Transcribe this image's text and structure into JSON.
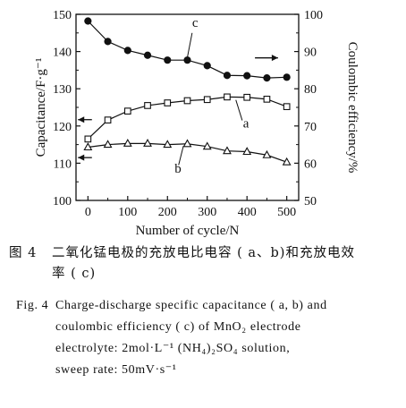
{
  "chart_data": {
    "type": "scatter",
    "xlabel": "Number of cycle/N",
    "ylabel_left": "Capacitance/F·g⁻¹",
    "ylabel_right": "Coulombic efficiency/%",
    "xlim": [
      -30,
      530
    ],
    "ylim_left": [
      100,
      150
    ],
    "ylim_right": [
      50,
      100
    ],
    "x_ticks": [
      0,
      100,
      200,
      300,
      400,
      500
    ],
    "y_ticks_left": [
      100,
      110,
      120,
      130,
      140,
      150
    ],
    "y_ticks_right": [
      50,
      60,
      70,
      80,
      90,
      100
    ],
    "grid": false,
    "series": [
      {
        "name": "c",
        "axis": "right",
        "marker": "filled-circle",
        "x": [
          0,
          50,
          100,
          150,
          200,
          250,
          300,
          350,
          400,
          450,
          500
        ],
        "values": [
          98.2,
          92.7,
          90.3,
          89.0,
          87.7,
          87.7,
          86.2,
          83.6,
          83.5,
          82.9,
          83.1
        ]
      },
      {
        "name": "a",
        "axis": "left",
        "marker": "open-square",
        "x": [
          0,
          50,
          100,
          150,
          200,
          250,
          300,
          350,
          400,
          450,
          500
        ],
        "values": [
          116.5,
          121.6,
          124.0,
          125.5,
          126.2,
          126.8,
          127.1,
          127.8,
          127.7,
          127.2,
          125.2
        ]
      },
      {
        "name": "b",
        "axis": "left",
        "marker": "open-triangle",
        "x": [
          0,
          50,
          100,
          150,
          200,
          250,
          300,
          350,
          400,
          450,
          500
        ],
        "values": [
          114.3,
          115.0,
          115.3,
          115.3,
          115.0,
          115.2,
          114.5,
          113.3,
          113.1,
          112.2,
          110.3
        ]
      }
    ],
    "annotations": [
      "c",
      "a",
      "b"
    ]
  },
  "caption_cn": {
    "label": "图 4",
    "line1": "二氧化锰电极的充放电比电容 ( a、b)和充放电效",
    "line2": "率 ( c)"
  },
  "caption_en": {
    "label": "Fig. 4",
    "line1": "Charge-discharge specific capacitance ( a, b)  and",
    "line2": "coulombic efficiency ( c)  of MnO₂  electrode",
    "line3": "electrolyte: 2mol·L⁻¹ (NH₄)₂SO₄  solution,",
    "line4": "sweep rate: 50mV·s⁻¹"
  },
  "colors": {
    "ink": "#111111",
    "background": "#ffffff"
  }
}
